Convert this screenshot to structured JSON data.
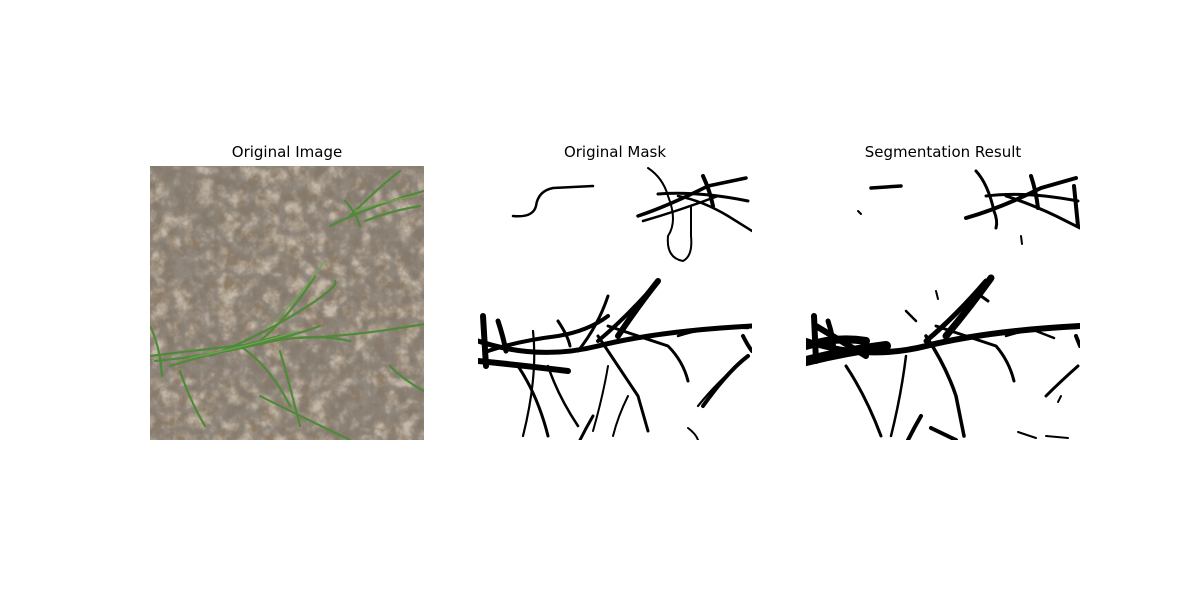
{
  "panels": [
    {
      "title": "Original Image"
    },
    {
      "title": "Original Mask"
    },
    {
      "title": "Segmentation Result"
    }
  ],
  "colors": {
    "soil": "#8b7a66",
    "soil_shadow": "#4a4036",
    "grass": "#4f8a3a",
    "mask_fg": "#000000",
    "mask_bg": "#ffffff"
  }
}
